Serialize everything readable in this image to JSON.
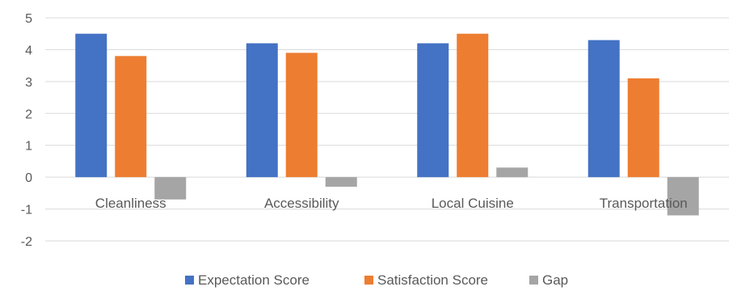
{
  "chart_data": {
    "type": "bar",
    "title": "",
    "xlabel": "",
    "ylabel": "",
    "categories": [
      "Cleanliness",
      "Accessibility",
      "Local Cuisine",
      "Transportation"
    ],
    "series": [
      {
        "name": "Expectation Score",
        "color": "#4472C4",
        "values": [
          4.5,
          4.2,
          4.2,
          4.3
        ]
      },
      {
        "name": "Satisfaction Score",
        "color": "#ED7D31",
        "values": [
          3.8,
          3.9,
          4.5,
          3.1
        ]
      },
      {
        "name": "Gap",
        "color": "#A5A5A5",
        "values": [
          -0.7,
          -0.3,
          0.3,
          -1.2
        ]
      }
    ],
    "ylim": [
      -2,
      5
    ],
    "yticks": [
      "-2",
      "-1",
      "0",
      "1",
      "2",
      "3",
      "4",
      "5"
    ],
    "grid": true,
    "legend": "bottom"
  }
}
